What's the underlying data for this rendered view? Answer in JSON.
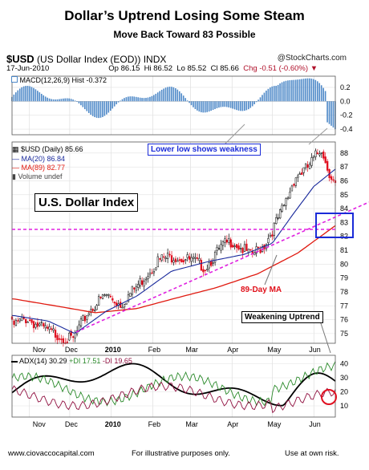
{
  "header": {
    "title": "Dollar’s Uptrend Losing Some Steam",
    "subtitle": "Move Back Toward 83 Possible",
    "symbol": "$USD",
    "symbol_desc": "(US Dollar Index (EOD)) INDX",
    "brand": "@StockCharts.com",
    "date": "17-Jun-2010",
    "open": "Op 86.15",
    "high": "Hi 86.52",
    "low": "Lo 85.52",
    "close": "Cl 85.66",
    "change": "Chg -0.51 (-0.60%)"
  },
  "macd_panel": {
    "label": "MACD(12,26,9) Hist -0.372",
    "yticks": [
      "0.2",
      "0.0",
      "-0.2",
      "-0.4"
    ]
  },
  "price_panel": {
    "legend": {
      "price": "$USD (Daily) 85.66",
      "ma20": "MA(20) 86.84",
      "ma89": "MA(89) 82.77",
      "volume": "Volume undef"
    },
    "yticks": [
      "88",
      "87",
      "86",
      "85",
      "84",
      "83",
      "82",
      "81",
      "80",
      "79",
      "78",
      "77",
      "76",
      "75"
    ]
  },
  "adx_panel": {
    "label_adx": "ADX(14) 30.29",
    "label_pdi": "+DI 17.51",
    "label_mdi": "-DI 19.65",
    "yticks": [
      "40",
      "30",
      "20",
      "10"
    ]
  },
  "xaxis": {
    "price_ticks": [
      "Nov",
      "Dec",
      "2010",
      "Feb",
      "Mar",
      "Apr",
      "May",
      "Jun"
    ],
    "adx_ticks": [
      "Nov",
      "Dec",
      "2010",
      "Feb",
      "Mar",
      "Apr",
      "May",
      "Jun"
    ]
  },
  "annotations": {
    "lower_low": "Lower low shows weakness",
    "usd_index": "U.S. Dollar Index",
    "ma89": "89-Day MA",
    "weakening": "Weakening Uptrend"
  },
  "footer": {
    "site": "www.ciovaccocapital.com",
    "note": "For illustrative purposes only.",
    "risk": "Use at own risk."
  },
  "colors": {
    "price_up": "#000000",
    "price_down": "#e01020",
    "ma20": "#1a2a9c",
    "ma89": "#e01a10",
    "macd_hist": "#4e89c8",
    "adx": "#000000",
    "pdi": "#2a8a2a",
    "mdi": "#901040",
    "trendline": "#e020e0",
    "box": "#1a2bd8"
  },
  "chart_data": [
    {
      "type": "line",
      "name": "price",
      "x_range": [
        "2009-10-19",
        "2010-06-17"
      ],
      "ylim": [
        74.3,
        88.8
      ],
      "close_path": [
        [
          "2009-10-20",
          75.6
        ],
        [
          "2009-10-30",
          76.1
        ],
        [
          "2009-11-10",
          75.4
        ],
        [
          "2009-11-25",
          74.8
        ],
        [
          "2009-12-03",
          74.5
        ],
        [
          "2009-12-15",
          76.6
        ],
        [
          "2009-12-28",
          77.8
        ],
        [
          "2010-01-08",
          77.1
        ],
        [
          "2010-01-20",
          78.4
        ],
        [
          "2010-02-05",
          80.3
        ],
        [
          "2010-02-17",
          80.6
        ],
        [
          "2010-03-03",
          80.2
        ],
        [
          "2010-03-12",
          79.8
        ],
        [
          "2010-03-25",
          81.3
        ],
        [
          "2010-04-01",
          81.7
        ],
        [
          "2010-04-15",
          80.6
        ],
        [
          "2010-04-25",
          81.4
        ],
        [
          "2010-05-03",
          82.8
        ],
        [
          "2010-05-10",
          84.2
        ],
        [
          "2010-05-18",
          86.3
        ],
        [
          "2010-05-27",
          86.9
        ],
        [
          "2010-06-07",
          88.4
        ],
        [
          "2010-06-10",
          87.2
        ],
        [
          "2010-06-17",
          85.66
        ]
      ],
      "ma20_path": [
        [
          "2009-10-20",
          76.3
        ],
        [
          "2009-11-15",
          75.9
        ],
        [
          "2009-12-05",
          75.0
        ],
        [
          "2009-12-28",
          76.6
        ],
        [
          "2010-01-20",
          77.7
        ],
        [
          "2010-02-15",
          79.5
        ],
        [
          "2010-03-15",
          80.2
        ],
        [
          "2010-04-10",
          80.7
        ],
        [
          "2010-05-01",
          81.5
        ],
        [
          "2010-05-15",
          83.4
        ],
        [
          "2010-06-01",
          85.6
        ],
        [
          "2010-06-17",
          86.84
        ]
      ],
      "ma89_path": [
        [
          "2009-10-20",
          77.5
        ],
        [
          "2009-11-20",
          77.0
        ],
        [
          "2009-12-20",
          76.5
        ],
        [
          "2010-01-20",
          76.8
        ],
        [
          "2010-02-20",
          77.6
        ],
        [
          "2010-03-20",
          78.3
        ],
        [
          "2010-04-20",
          79.3
        ],
        [
          "2010-05-20",
          80.8
        ],
        [
          "2010-06-17",
          82.77
        ]
      ]
    },
    {
      "type": "bar",
      "name": "MACD histogram",
      "ylim": [
        -0.48,
        0.36
      ]
    },
    {
      "type": "line",
      "name": "ADX/DMI",
      "ylim": [
        2,
        46
      ]
    }
  ]
}
